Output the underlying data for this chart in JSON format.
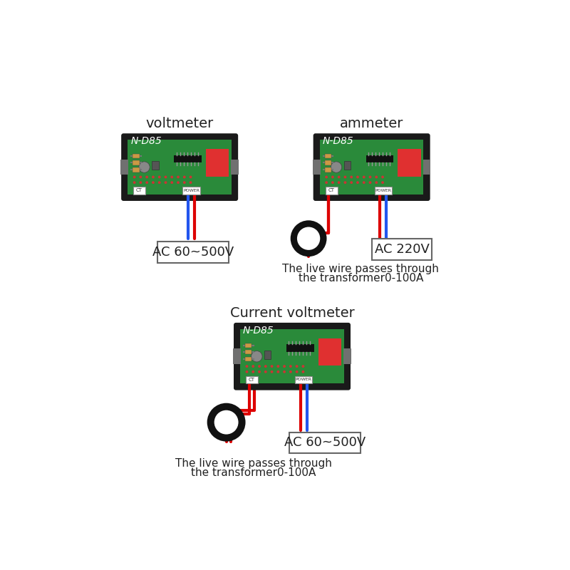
{
  "bg_color": "#ffffff",
  "board_color": "#2a8a3a",
  "outer_case_color": "#1a1a1a",
  "clip_color": "#707070",
  "red_block_color": "#e03030",
  "wire_red": "#dd0000",
  "wire_blue": "#2255ee",
  "wire_black": "#111111",
  "label_box_bg": "#ffffff",
  "label_border_color": "#666666",
  "toroid_color": "#111111",
  "text_color": "#222222",
  "voltmeter_label": "voltmeter",
  "ammeter_label": "ammeter",
  "current_voltmeter_label": "Current voltmeter",
  "ac_60_500v": "AC 60~500V",
  "ac_220v": "AC 220V",
  "transformer_text1": "The live wire passes through",
  "transformer_text2": "the transformer0-100A",
  "nd85_label": "N-D85"
}
